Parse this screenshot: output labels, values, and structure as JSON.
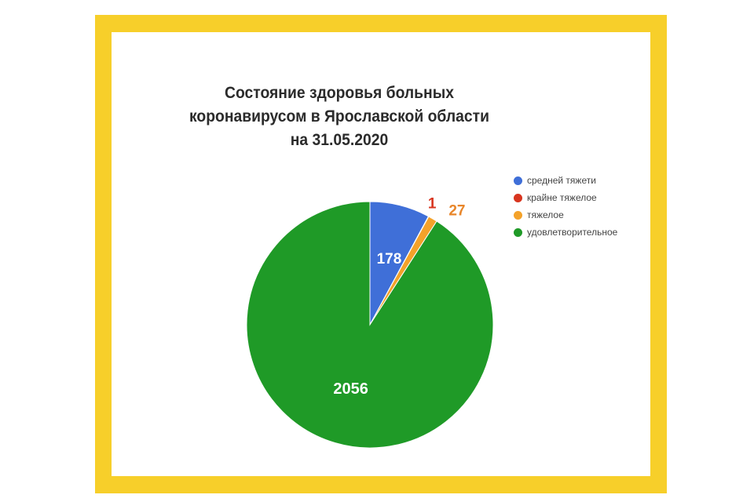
{
  "chart_data": {
    "type": "pie",
    "title": "Состояние здоровья больных коронавирусом в Ярославской области на 31.05.2020",
    "title_lines": [
      "Состояние здоровья больных",
      "коронавирусом в Ярославской области",
      "на  31.05.2020"
    ],
    "slices": [
      {
        "name": "средней тяжети",
        "value": 178,
        "color": "#3f6fd8",
        "label_color": "#ffffff"
      },
      {
        "name": "крайне тяжелое",
        "value": 1,
        "color": "#d8351f",
        "label_color": "#d8351f"
      },
      {
        "name": "тяжелое",
        "value": 27,
        "color": "#f4a22a",
        "label_color": "#e8862a"
      },
      {
        "name": "удовлетворительное",
        "value": 2056,
        "color": "#1f9a27",
        "label_color": "#ffffff"
      }
    ],
    "legend_position": "top-right"
  },
  "colors": {
    "frame": "#f7cf2a",
    "background": "#ffffff"
  }
}
